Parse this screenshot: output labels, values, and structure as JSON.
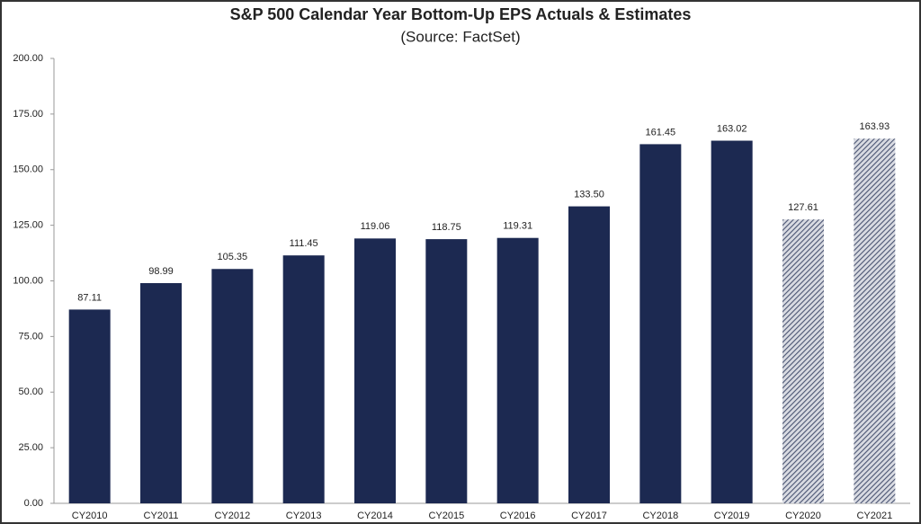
{
  "chart_data": {
    "type": "bar",
    "title": "S&P 500 Calendar Year Bottom-Up EPS Actuals & Estimates",
    "subtitle": "(Source: FactSet)",
    "categories": [
      "CY2010",
      "CY2011",
      "CY2012",
      "CY2013",
      "CY2014",
      "CY2015",
      "CY2016",
      "CY2017",
      "CY2018",
      "CY2019",
      "CY2020",
      "CY2021"
    ],
    "values": [
      87.11,
      98.99,
      105.35,
      111.45,
      119.06,
      118.75,
      119.31,
      133.5,
      161.45,
      163.02,
      127.61,
      163.93
    ],
    "value_labels": [
      "87.11",
      "98.99",
      "105.35",
      "111.45",
      "119.06",
      "118.75",
      "119.31",
      "133.50",
      "161.45",
      "163.02",
      "127.61",
      "163.93"
    ],
    "fills": [
      "solid",
      "solid",
      "solid",
      "solid",
      "solid",
      "solid",
      "solid",
      "solid",
      "solid",
      "solid",
      "hatched",
      "hatched"
    ],
    "color": "#1c2951",
    "ylim": [
      0,
      200
    ],
    "yticks": [
      {
        "value": 0,
        "label": "0.00"
      },
      {
        "value": 25,
        "label": "25.00"
      },
      {
        "value": 50,
        "label": "50.00"
      },
      {
        "value": 75,
        "label": "75.00"
      },
      {
        "value": 100,
        "label": "100.00"
      },
      {
        "value": 125,
        "label": "125.00"
      },
      {
        "value": 150,
        "label": "150.00"
      },
      {
        "value": 175,
        "label": "175.00"
      },
      {
        "value": 200,
        "label": "200.00"
      }
    ],
    "grid": false
  }
}
